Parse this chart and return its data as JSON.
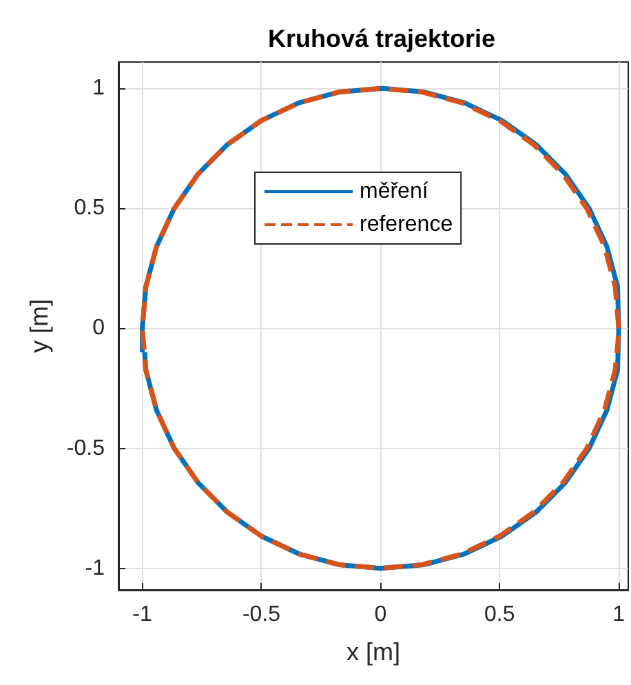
{
  "chart_data": {
    "type": "line",
    "title": "Kruhová trajektorie",
    "xlabel": "x [m]",
    "ylabel": "y [m]",
    "xlim": [
      -1.1,
      1.04
    ],
    "ylim": [
      -1.09,
      1.11
    ],
    "xticks": [
      -1,
      -0.5,
      0,
      0.5,
      1
    ],
    "yticks": [
      -1,
      -0.5,
      0,
      0.5,
      1
    ],
    "grid": true,
    "legend": "top",
    "marker": "none",
    "series": [
      {
        "name": "měření",
        "color": "#0072bd",
        "line_style": "solid",
        "x": [
          -0.99,
          -0.985,
          -0.94,
          -0.866,
          -0.766,
          -0.643,
          -0.5,
          -0.342,
          -0.174,
          0.0,
          0.184,
          0.352,
          0.51,
          0.653,
          0.776,
          0.876,
          0.95,
          0.995,
          1.0,
          0.995,
          0.95,
          0.876,
          0.776,
          0.653,
          0.51,
          0.352,
          0.184,
          0.01,
          -0.174,
          -0.342,
          -0.5,
          -0.643,
          -0.766,
          -0.866,
          -0.94,
          -0.985,
          -1.0,
          -1.0
        ],
        "values": [
          -0.1,
          -0.174,
          -0.342,
          -0.5,
          -0.643,
          -0.766,
          -0.866,
          -0.94,
          -0.985,
          -1.0,
          -0.985,
          -0.94,
          -0.866,
          -0.766,
          -0.643,
          -0.5,
          -0.342,
          -0.174,
          0.0,
          0.174,
          0.342,
          0.5,
          0.643,
          0.766,
          0.866,
          0.94,
          0.985,
          1.0,
          0.985,
          0.94,
          0.866,
          0.766,
          0.643,
          0.5,
          0.342,
          0.174,
          0.0,
          -0.1
        ]
      },
      {
        "name": "reference",
        "color": "#d95319",
        "line_style": "dashed",
        "x": [
          1.0,
          0.985,
          0.94,
          0.866,
          0.766,
          0.643,
          0.5,
          0.342,
          0.174,
          0.0,
          -0.174,
          -0.342,
          -0.5,
          -0.643,
          -0.766,
          -0.866,
          -0.94,
          -0.985,
          -1.0,
          -0.985,
          -0.94,
          -0.866,
          -0.766,
          -0.643,
          -0.5,
          -0.342,
          -0.174,
          0.0,
          0.174,
          0.342,
          0.5,
          0.643,
          0.766,
          0.866,
          0.94,
          0.985,
          0.999
        ],
        "values": [
          0.0,
          0.174,
          0.342,
          0.5,
          0.643,
          0.766,
          0.866,
          0.94,
          0.985,
          1.0,
          0.985,
          0.94,
          0.866,
          0.766,
          0.643,
          0.5,
          0.342,
          0.174,
          0.0,
          -0.174,
          -0.342,
          -0.5,
          -0.643,
          -0.766,
          -0.866,
          -0.94,
          -0.985,
          -1.0,
          -0.985,
          -0.94,
          -0.866,
          -0.766,
          -0.643,
          -0.5,
          -0.342,
          -0.174,
          -0.03
        ]
      }
    ]
  }
}
